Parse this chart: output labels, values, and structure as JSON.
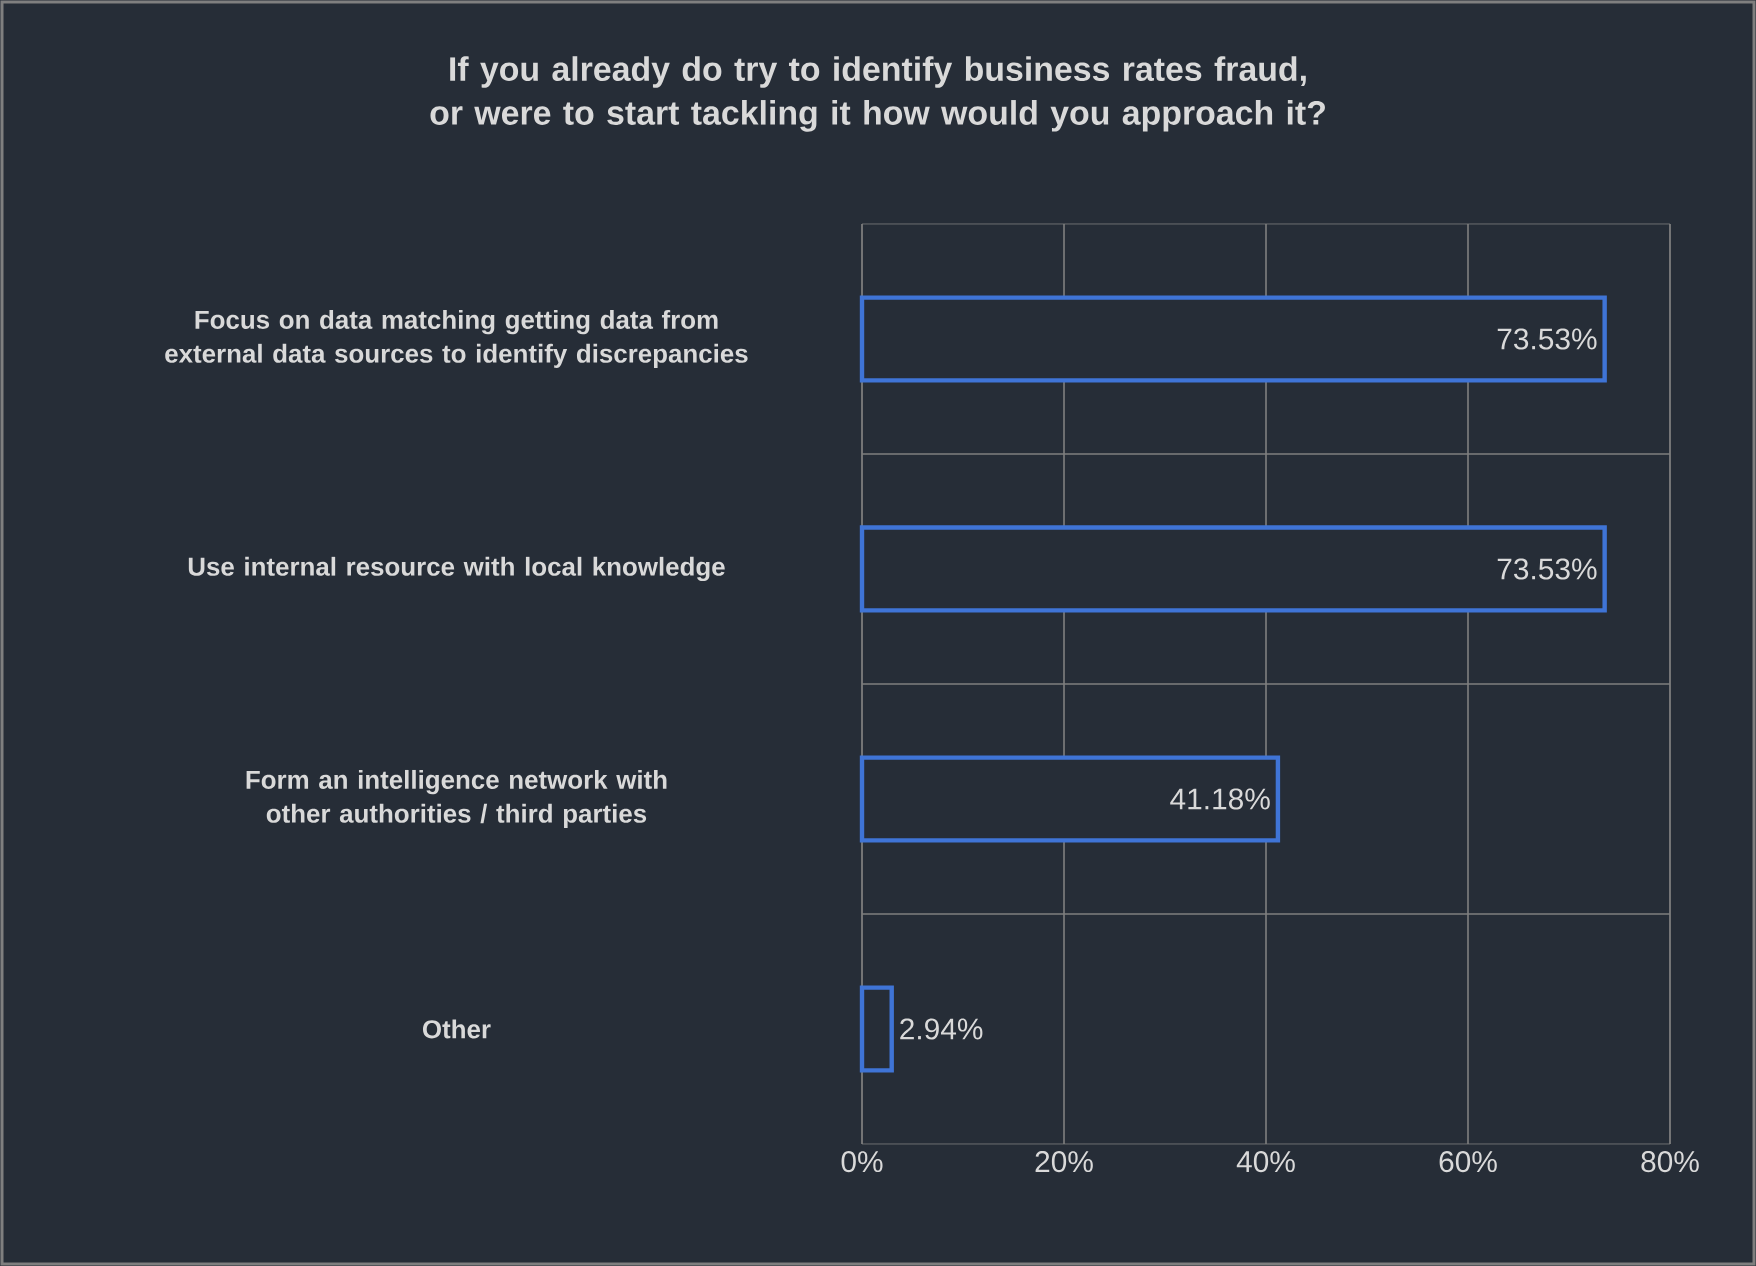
{
  "chart_data": {
    "type": "bar",
    "orientation": "horizontal",
    "title": "If you already do try to identify business rates fraud, or were to start tackling it how would you approach it?",
    "categories": [
      "Focus on data matching getting data from external data sources to identify discrepancies",
      "Use internal resource with local knowledge",
      "Form an intelligence network with other authorities / third parties",
      "Other"
    ],
    "values": [
      73.53,
      73.53,
      41.18,
      2.94
    ],
    "value_labels": [
      "73.53%",
      "73.53%",
      "41.18%",
      "2.94%"
    ],
    "color": "#3f74d6",
    "xlim": [
      0,
      80
    ],
    "xticks": [
      {
        "value": 0,
        "label": "0%"
      },
      {
        "value": 20,
        "label": "20%"
      },
      {
        "value": 40,
        "label": "40%"
      },
      {
        "value": 60,
        "label": "60%"
      },
      {
        "value": 80,
        "label": "80%"
      }
    ],
    "grid": true
  }
}
